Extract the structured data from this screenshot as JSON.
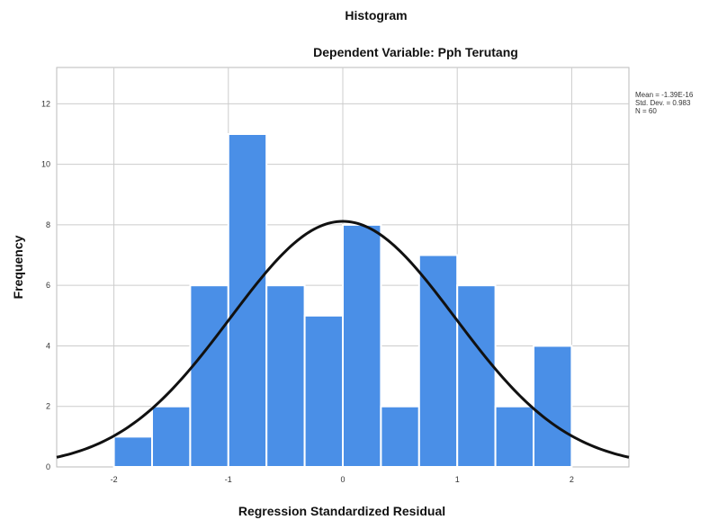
{
  "chart_data": {
    "type": "bar",
    "subtype": "histogram",
    "title": "Histogram",
    "subtitle": "Dependent Variable: Pph Terutang",
    "xlabel": "Regression Standardized Residual",
    "ylabel": "Frequency",
    "x_ticks": [
      "-2",
      "-1",
      "0",
      "1",
      "2"
    ],
    "y_ticks": [
      "0",
      "2",
      "4",
      "6",
      "8",
      "10",
      "12"
    ],
    "xlim": [
      -2.5,
      2.5
    ],
    "ylim": [
      0,
      13.2
    ],
    "grid": true,
    "bin_width": 0.3333,
    "bins": [
      {
        "start": -2.0,
        "value": 1
      },
      {
        "start": -1.6667,
        "value": 2
      },
      {
        "start": -1.3333,
        "value": 6
      },
      {
        "start": -1.0,
        "value": 11
      },
      {
        "start": -0.6667,
        "value": 6
      },
      {
        "start": -0.3333,
        "value": 5
      },
      {
        "start": 0.0,
        "value": 8
      },
      {
        "start": 0.3333,
        "value": 2
      },
      {
        "start": 0.6667,
        "value": 7
      },
      {
        "start": 1.0,
        "value": 6
      },
      {
        "start": 1.3333,
        "value": 2
      },
      {
        "start": 1.6667,
        "value": 4
      }
    ],
    "normal_curve": {
      "mean": 0,
      "std": 0.983,
      "n": 60
    },
    "stats_lines": [
      "Mean = -1.39E-16",
      "Std. Dev. = 0.983",
      "N = 60"
    ],
    "colors": {
      "bar_fill": "#4a8fe7",
      "bar_edge": "#ffffff",
      "curve": "#111111",
      "grid": "#cccccc"
    }
  }
}
